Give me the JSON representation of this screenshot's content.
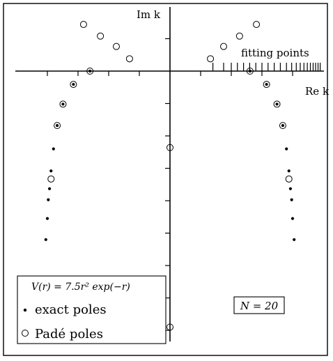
{
  "chart_data": {
    "type": "scatter",
    "title": "",
    "xlabel": "Re k",
    "ylabel": "Im k",
    "grid": false,
    "annotations": {
      "fitting_points_label": "fitting points",
      "potential_label": "V(r) = 7.5r² exp(−r)",
      "n_label": "N = 20"
    },
    "legend": {
      "placement": "bottom-left",
      "entries": [
        {
          "marker": "dot",
          "label": "exact poles"
        },
        {
          "marker": "circle",
          "label": "Padé poles"
        }
      ]
    },
    "xlim": [
      -5.0,
      5.0
    ],
    "ylim": [
      -8.25,
      2.0
    ],
    "x_ticks": [
      -4,
      -3,
      -2,
      -1,
      1,
      2,
      3,
      4
    ],
    "y_ticks": [
      1,
      -1,
      -2,
      -3,
      -4,
      -5,
      -6,
      -7,
      -8
    ],
    "fitting_points_x": [
      1.4,
      1.75,
      2.0,
      2.2,
      2.4,
      2.6,
      2.8,
      3.0,
      3.2,
      3.4,
      3.6,
      3.8,
      3.97,
      4.12,
      4.25,
      4.37,
      4.48,
      4.58,
      4.67,
      4.75,
      4.83,
      4.9
    ],
    "series": [
      {
        "name": "exact poles",
        "marker": "dot",
        "points": [
          {
            "x": 2.61,
            "y": 0.0
          },
          {
            "x": 3.15,
            "y": -0.41
          },
          {
            "x": 3.49,
            "y": -1.02
          },
          {
            "x": 3.68,
            "y": -1.68
          },
          {
            "x": 3.8,
            "y": -2.4
          },
          {
            "x": 3.88,
            "y": -3.08
          },
          {
            "x": 3.93,
            "y": -3.63
          },
          {
            "x": 3.97,
            "y": -3.97
          },
          {
            "x": 4.0,
            "y": -4.55
          },
          {
            "x": 4.05,
            "y": -5.2
          },
          {
            "x": -2.61,
            "y": 0.0
          },
          {
            "x": -3.15,
            "y": -0.41
          },
          {
            "x": -3.49,
            "y": -1.02
          },
          {
            "x": -3.68,
            "y": -1.68
          },
          {
            "x": -3.8,
            "y": -2.4
          },
          {
            "x": -3.88,
            "y": -3.08
          },
          {
            "x": -3.93,
            "y": -3.63
          },
          {
            "x": -3.97,
            "y": -3.97
          },
          {
            "x": -4.0,
            "y": -4.55
          },
          {
            "x": -4.05,
            "y": -5.2
          }
        ]
      },
      {
        "name": "Padé poles",
        "marker": "circle",
        "points": [
          {
            "x": 2.82,
            "y": 1.44
          },
          {
            "x": 2.27,
            "y": 1.08
          },
          {
            "x": 1.75,
            "y": 0.76
          },
          {
            "x": 1.32,
            "y": 0.38
          },
          {
            "x": 2.61,
            "y": 0.0
          },
          {
            "x": 3.15,
            "y": -0.41
          },
          {
            "x": 3.49,
            "y": -1.02
          },
          {
            "x": 3.68,
            "y": -1.68
          },
          {
            "x": 3.88,
            "y": -3.33
          },
          {
            "x": -2.82,
            "y": 1.44
          },
          {
            "x": -2.27,
            "y": 1.08
          },
          {
            "x": -1.75,
            "y": 0.76
          },
          {
            "x": -1.32,
            "y": 0.38
          },
          {
            "x": -2.61,
            "y": 0.0
          },
          {
            "x": -3.15,
            "y": -0.41
          },
          {
            "x": -3.49,
            "y": -1.02
          },
          {
            "x": -3.68,
            "y": -1.68
          },
          {
            "x": -3.88,
            "y": -3.33
          },
          {
            "x": 0.0,
            "y": -2.36
          },
          {
            "x": 0.0,
            "y": -7.9
          }
        ]
      }
    ]
  }
}
